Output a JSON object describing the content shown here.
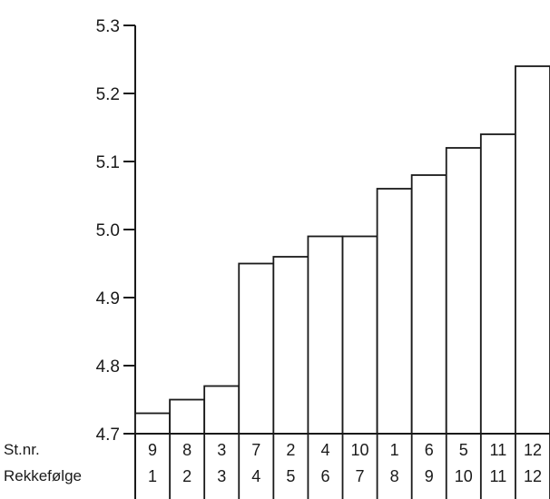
{
  "chart_data": {
    "type": "bar",
    "title": "",
    "xlabel": "",
    "ylabel": "",
    "ylim": [
      4.7,
      5.3
    ],
    "yticks": [
      "4.7",
      "4.8",
      "4.9",
      "5.0",
      "5.1",
      "5.2",
      "5.3"
    ],
    "row_labels": {
      "station": "St.nr.",
      "order": "Rekkefølge"
    },
    "station_numbers": [
      "9",
      "8",
      "3",
      "7",
      "2",
      "4",
      "10",
      "1",
      "6",
      "5",
      "11",
      "12"
    ],
    "order_numbers": [
      "1",
      "2",
      "3",
      "4",
      "5",
      "6",
      "7",
      "8",
      "9",
      "10",
      "11",
      "12"
    ],
    "values": [
      4.73,
      4.75,
      4.77,
      4.95,
      4.96,
      4.99,
      4.99,
      5.06,
      5.08,
      5.12,
      5.14,
      5.24
    ],
    "grid": false,
    "legend": "none"
  }
}
